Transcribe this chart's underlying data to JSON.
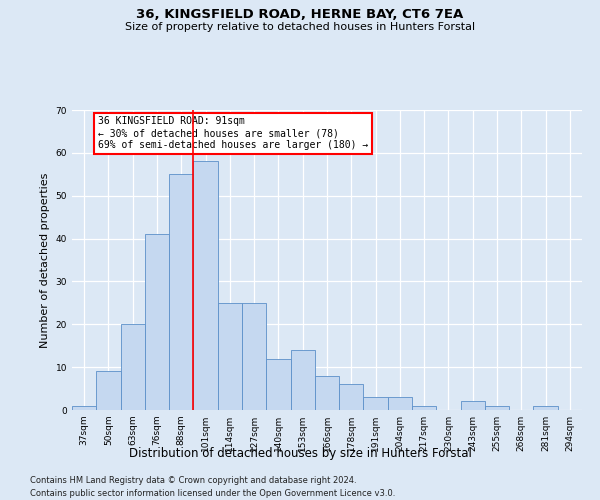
{
  "title1": "36, KINGSFIELD ROAD, HERNE BAY, CT6 7EA",
  "title2": "Size of property relative to detached houses in Hunters Forstal",
  "xlabel": "Distribution of detached houses by size in Hunters Forstal",
  "ylabel": "Number of detached properties",
  "categories": [
    "37sqm",
    "50sqm",
    "63sqm",
    "76sqm",
    "88sqm",
    "101sqm",
    "114sqm",
    "127sqm",
    "140sqm",
    "153sqm",
    "166sqm",
    "178sqm",
    "191sqm",
    "204sqm",
    "217sqm",
    "230sqm",
    "243sqm",
    "255sqm",
    "268sqm",
    "281sqm",
    "294sqm"
  ],
  "values": [
    1,
    9,
    20,
    41,
    55,
    58,
    25,
    25,
    12,
    14,
    8,
    6,
    3,
    3,
    1,
    0,
    2,
    1,
    0,
    1,
    0
  ],
  "bar_color": "#c5d8f0",
  "bar_edge_color": "#5b8fc9",
  "annotation_text_line1": "36 KINGSFIELD ROAD: 91sqm",
  "annotation_text_line2": "← 30% of detached houses are smaller (78)",
  "annotation_text_line3": "69% of semi-detached houses are larger (180) →",
  "annotation_box_color": "white",
  "annotation_box_edge_color": "red",
  "vline_color": "red",
  "ylim": [
    0,
    70
  ],
  "yticks": [
    0,
    10,
    20,
    30,
    40,
    50,
    60,
    70
  ],
  "footnote1": "Contains HM Land Registry data © Crown copyright and database right 2024.",
  "footnote2": "Contains public sector information licensed under the Open Government Licence v3.0.",
  "bg_color": "#dce8f5",
  "plot_bg_color": "#dce8f5"
}
